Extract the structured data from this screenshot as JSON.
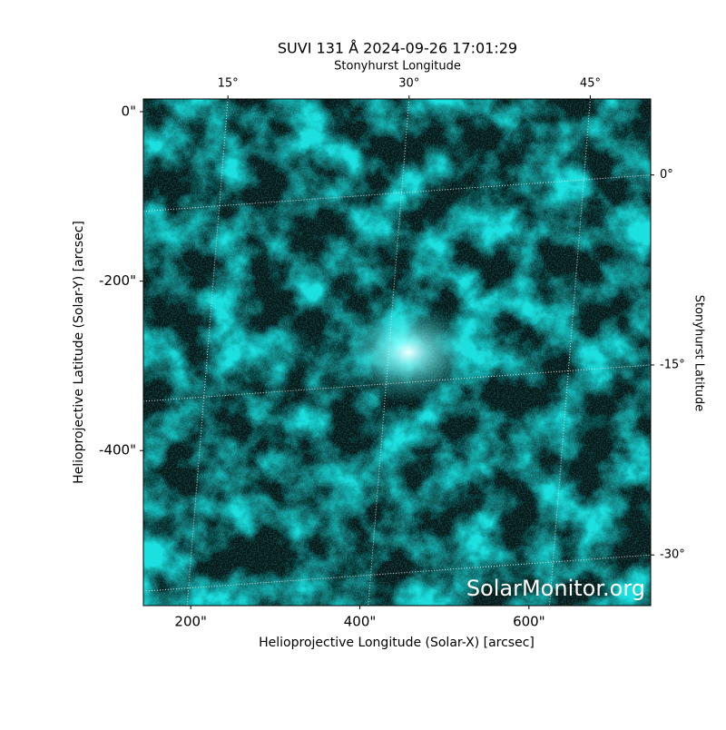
{
  "chart_data": {
    "type": "image",
    "title": "SUVI 131 Å 2024-09-26 17:01:29",
    "xlabel": "Helioprojective Longitude (Solar-X) [arcsec]",
    "ylabel": "Helioprojective Latitude (Solar-Y) [arcsec]",
    "top_xlabel": "Stonyhurst Longitude",
    "right_ylabel": "Stonyhurst Latitude",
    "watermark": "SolarMonitor.org",
    "color": "#14e0e0",
    "xlim": [
      144,
      744
    ],
    "ylim": [
      -583,
      15
    ],
    "xticks": [
      {
        "value": 200,
        "label": "200\""
      },
      {
        "value": 400,
        "label": "400\""
      },
      {
        "value": 600,
        "label": "600\""
      }
    ],
    "yticks": [
      {
        "value": 0,
        "label": "0\""
      },
      {
        "value": -200,
        "label": "-200\""
      },
      {
        "value": -400,
        "label": "-400\""
      }
    ],
    "top_xlim": [
      8,
      50
    ],
    "top_xticks": [
      {
        "value": 15,
        "label": "15°"
      },
      {
        "value": 30,
        "label": "30°"
      },
      {
        "value": 45,
        "label": "45°"
      }
    ],
    "right_ylim": [
      -34,
      6
    ],
    "right_yticks": [
      {
        "value": 0,
        "label": "0°"
      },
      {
        "value": -15,
        "label": "-15°"
      },
      {
        "value": -30,
        "label": "-30°"
      }
    ],
    "grid": true
  }
}
